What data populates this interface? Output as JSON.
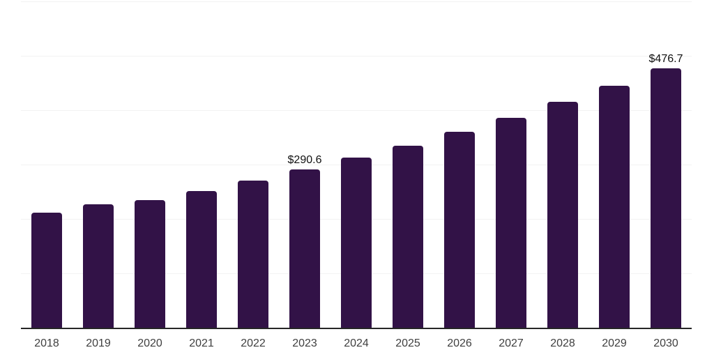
{
  "page": {
    "background_color": "#ffffff"
  },
  "chart_data": {
    "type": "bar",
    "title": "",
    "xlabel": "",
    "ylabel": "",
    "categories": [
      "2018",
      "2019",
      "2020",
      "2021",
      "2022",
      "2023",
      "2024",
      "2025",
      "2026",
      "2027",
      "2028",
      "2029",
      "2030"
    ],
    "values": [
      211.0,
      226.5,
      234.5,
      251.5,
      270.5,
      290.6,
      312.5,
      335.0,
      360.5,
      386.0,
      415.0,
      445.5,
      476.7
    ],
    "data_labels": [
      "",
      "",
      "",
      "",
      "",
      "$290.6",
      "",
      "",
      "",
      "",
      "",
      "",
      "$476.7"
    ],
    "value_prefix": "$",
    "ylim": [
      0,
      600
    ],
    "gridline_values": [
      100,
      200,
      300,
      400,
      500,
      600
    ],
    "grid": "horizontal",
    "legend": "none",
    "y_tick_labels_visible": false,
    "colors": {
      "bar": "#321247",
      "axis_line": "#262626",
      "gridline": "#f2f2f2",
      "tick_label": "#3f3f3f",
      "data_label": "#111111"
    }
  }
}
